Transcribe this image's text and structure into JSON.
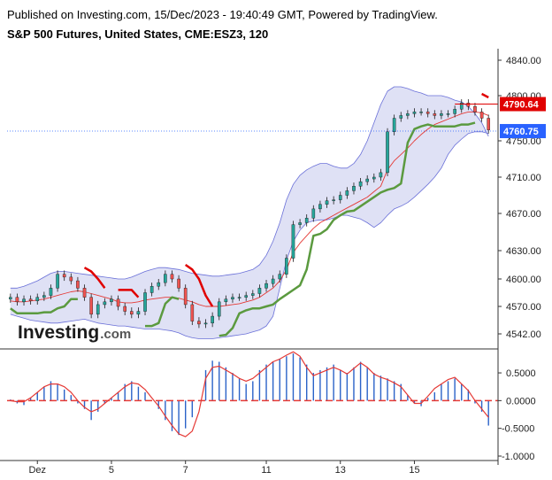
{
  "header": {
    "published": "Published on Investing.com, 15/Dec/2023 - 19:40:49 GMT, Powered by TradingView.",
    "instrument": "S&P 500 Futures, United States, CME:ESZ3, 120"
  },
  "logo": {
    "brand": "Investing",
    "suffix": ".com"
  },
  "colors": {
    "up_candle": "#26a69a",
    "down_candle": "#ef5350",
    "band_fill": "#c5c8ec",
    "band_line": "#6a70d8",
    "ma_line": "#e53935",
    "supertrend_up": "#5b9a3f",
    "supertrend_down": "#e00000",
    "histogram": "#2a62c8",
    "osc_line": "#e53935",
    "zero_line": "#e53935",
    "price_tag_red": "#e00000",
    "price_tag_blue": "#2962ff"
  },
  "chart_data": [
    {
      "type": "candlestick",
      "title": "S&P 500 Futures, United States, CME:ESZ3, 120",
      "y_ticks": [
        "4840.00",
        "4800.00",
        "4750.00",
        "4710.00",
        "4670.00",
        "4630.00",
        "4600.00",
        "4570.00",
        "4542.00"
      ],
      "ylim": [
        4535,
        4858
      ],
      "x_ticks": [
        "Dez",
        "5",
        "7",
        "11",
        "13",
        "15"
      ],
      "price_tags": [
        {
          "label": "4790.64",
          "value": 4790.64,
          "color": "red"
        },
        {
          "label": "4760.75",
          "value": 4760.75,
          "color": "blue"
        }
      ],
      "series": [
        {
          "name": "close",
          "values": [
            4580,
            4575,
            4578,
            4576,
            4580,
            4582,
            4590,
            4605,
            4602,
            4598,
            4590,
            4580,
            4562,
            4572,
            4575,
            4578,
            4570,
            4565,
            4562,
            4565,
            4585,
            4592,
            4596,
            4605,
            4600,
            4590,
            4572,
            4555,
            4552,
            4553,
            4560,
            4575,
            4578,
            4580,
            4580,
            4582,
            4584,
            4590,
            4595,
            4600,
            4605,
            4622,
            4658,
            4660,
            4665,
            4675,
            4680,
            4684,
            4685,
            4690,
            4695,
            4700,
            4705,
            4708,
            4710,
            4715,
            4760,
            4775,
            4778,
            4780,
            4782,
            4782,
            4780,
            4778,
            4780,
            4780,
            4785,
            4792,
            4788,
            4782,
            4775,
            4762
          ]
        },
        {
          "name": "bollinger_upper",
          "values": [
            4590,
            4590,
            4592,
            4595,
            4598,
            4602,
            4606,
            4608,
            4608,
            4607,
            4606,
            4605,
            4604,
            4603,
            4602,
            4601,
            4600,
            4600,
            4602,
            4605,
            4608,
            4610,
            4612,
            4612,
            4611,
            4610,
            4608,
            4606,
            4605,
            4604,
            4603,
            4603,
            4604,
            4605,
            4606,
            4608,
            4610,
            4615,
            4625,
            4640,
            4660,
            4685,
            4702,
            4712,
            4718,
            4722,
            4725,
            4725,
            4722,
            4720,
            4720,
            4725,
            4735,
            4750,
            4770,
            4790,
            4805,
            4810,
            4810,
            4808,
            4805,
            4803,
            4800,
            4800,
            4800,
            4798,
            4795,
            4793,
            4788,
            4780,
            4770,
            4755
          ]
        },
        {
          "name": "bollinger_lower",
          "values": [
            4562,
            4560,
            4558,
            4556,
            4555,
            4554,
            4553,
            4553,
            4554,
            4555,
            4556,
            4557,
            4555,
            4553,
            4552,
            4551,
            4550,
            4550,
            4549,
            4548,
            4547,
            4547,
            4547,
            4546,
            4545,
            4543,
            4540,
            4538,
            4537,
            4537,
            4537,
            4538,
            4539,
            4540,
            4541,
            4542,
            4544,
            4546,
            4550,
            4560,
            4590,
            4620,
            4640,
            4652,
            4660,
            4662,
            4663,
            4663,
            4665,
            4668,
            4668,
            4666,
            4664,
            4660,
            4655,
            4660,
            4668,
            4675,
            4678,
            4682,
            4688,
            4695,
            4702,
            4710,
            4720,
            4735,
            4745,
            4752,
            4758,
            4760,
            4760,
            4758
          ]
        },
        {
          "name": "moving_average",
          "values": [
            4576,
            4575,
            4575,
            4576,
            4577,
            4578,
            4580,
            4582,
            4584,
            4586,
            4587,
            4586,
            4584,
            4582,
            4580,
            4578,
            4575,
            4574,
            4574,
            4575,
            4577,
            4578,
            4579,
            4580,
            4580,
            4579,
            4577,
            4575,
            4572,
            4570,
            4570,
            4570,
            4571,
            4572,
            4573,
            4575,
            4577,
            4580,
            4585,
            4590,
            4598,
            4610,
            4628,
            4638,
            4646,
            4654,
            4660,
            4664,
            4668,
            4672,
            4676,
            4680,
            4684,
            4688,
            4694,
            4700,
            4718,
            4728,
            4735,
            4742,
            4750,
            4757,
            4763,
            4768,
            4771,
            4774,
            4777,
            4780,
            4782,
            4782,
            4781,
            4778
          ]
        }
      ]
    },
    {
      "type": "bar",
      "title": "",
      "y_ticks": [
        "0.5000",
        "0.0000",
        "-0.5000",
        "-1.0000"
      ],
      "ylim": [
        -1.08,
        0.9
      ],
      "series": [
        {
          "name": "histogram",
          "values": [
            0.02,
            -0.05,
            -0.08,
            0.05,
            0.15,
            0.25,
            0.35,
            0.3,
            0.2,
            0.1,
            -0.05,
            -0.15,
            -0.35,
            -0.2,
            -0.05,
            0.05,
            0.15,
            0.3,
            0.35,
            0.25,
            0.15,
            0.0,
            -0.15,
            -0.35,
            -0.55,
            -0.62,
            -0.5,
            -0.3,
            0.0,
            0.55,
            0.72,
            0.7,
            0.6,
            0.5,
            0.4,
            0.3,
            0.35,
            0.55,
            0.65,
            0.7,
            0.75,
            0.8,
            0.85,
            0.78,
            0.65,
            0.5,
            0.55,
            0.6,
            0.65,
            0.55,
            0.5,
            0.6,
            0.7,
            0.6,
            0.5,
            0.45,
            0.4,
            0.35,
            0.3,
            0.1,
            -0.05,
            -0.1,
            0.05,
            0.15,
            0.3,
            0.35,
            0.4,
            0.3,
            0.2,
            -0.05,
            -0.2,
            -0.45
          ]
        },
        {
          "name": "signal",
          "values": [
            0.0,
            -0.02,
            -0.02,
            0.05,
            0.15,
            0.25,
            0.3,
            0.3,
            0.25,
            0.15,
            0.0,
            -0.12,
            -0.2,
            -0.15,
            -0.05,
            0.05,
            0.15,
            0.25,
            0.32,
            0.3,
            0.2,
            0.05,
            -0.1,
            -0.28,
            -0.45,
            -0.6,
            -0.65,
            -0.55,
            -0.2,
            0.4,
            0.6,
            0.62,
            0.55,
            0.48,
            0.4,
            0.35,
            0.4,
            0.5,
            0.6,
            0.7,
            0.75,
            0.82,
            0.88,
            0.8,
            0.6,
            0.45,
            0.5,
            0.55,
            0.6,
            0.55,
            0.48,
            0.58,
            0.68,
            0.6,
            0.48,
            0.42,
            0.38,
            0.32,
            0.25,
            0.1,
            -0.05,
            -0.05,
            0.08,
            0.22,
            0.3,
            0.38,
            0.42,
            0.3,
            0.18,
            0.0,
            -0.15,
            -0.3
          ]
        }
      ]
    }
  ]
}
